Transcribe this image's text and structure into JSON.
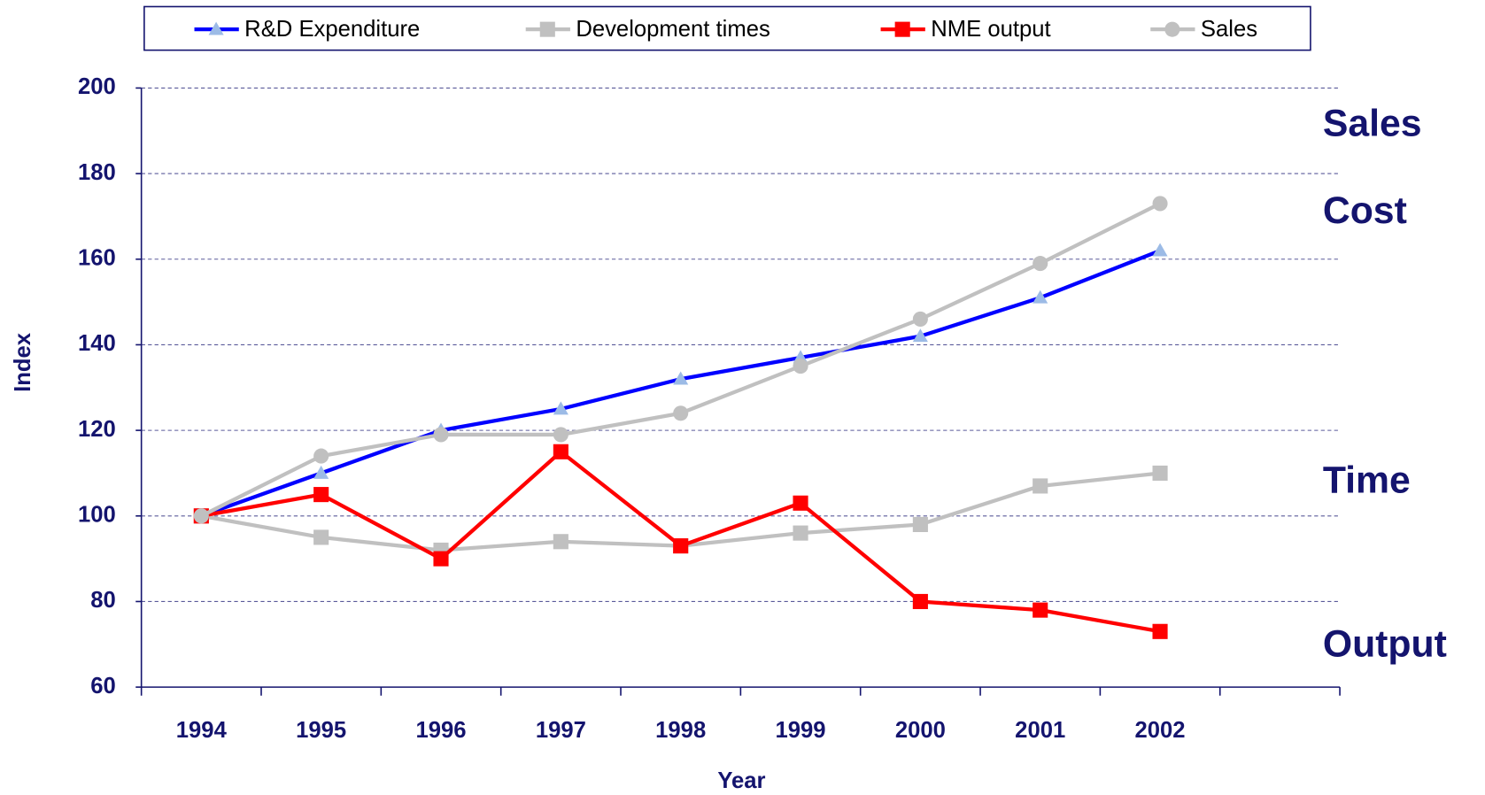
{
  "chart_data": {
    "type": "line",
    "x_label": "Year",
    "y_label": "Index",
    "categories": [
      "1994",
      "1995",
      "1996",
      "1997",
      "1998",
      "1999",
      "2000",
      "2001",
      "2002",
      null
    ],
    "series": [
      {
        "name": "R&D Expenditure",
        "color": "#0000ff",
        "marker": "triangle",
        "marker_color": "#9cbbe6",
        "values": [
          100,
          110,
          120,
          125,
          132,
          137,
          142,
          151,
          162,
          null
        ]
      },
      {
        "name": "Development times",
        "color": "#c0c0c0",
        "marker": "square",
        "marker_color": "#c0c0c0",
        "values": [
          100,
          95,
          92,
          94,
          93,
          96,
          98,
          107,
          110,
          null
        ]
      },
      {
        "name": "NME output",
        "color": "#ff0000",
        "marker": "square",
        "marker_color": "#ff0000",
        "values": [
          100,
          105,
          90,
          115,
          93,
          103,
          80,
          78,
          73,
          null
        ]
      },
      {
        "name": "Sales",
        "color": "#c0c0c0",
        "marker": "circle",
        "marker_color": "#c0c0c0",
        "values": [
          100,
          114,
          119,
          119,
          124,
          135,
          146,
          159,
          173,
          null
        ]
      }
    ],
    "annotations": [
      "Sales",
      "Cost",
      "Time",
      "Output"
    ],
    "ylim": [
      60,
      200
    ],
    "yticks": [
      60,
      80,
      100,
      120,
      140,
      160,
      180,
      200
    ],
    "grid": true,
    "legend": "top"
  }
}
